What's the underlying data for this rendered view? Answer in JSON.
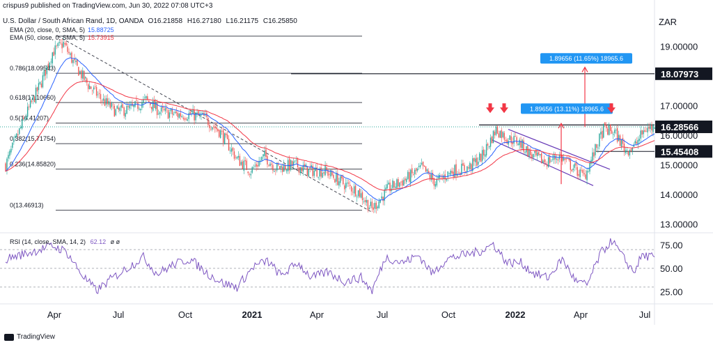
{
  "header": {
    "publisher": "crispus9 published on TradingView.com, Jun 30, 2022 07:08 UTC+3",
    "symbol_line": "U.S. Dollar / South African Rand, 1D, OANDA",
    "ohlc": {
      "o": "O16.21858",
      "h": "H16.27180",
      "l": "L16.21175",
      "c": "C16.25850"
    }
  },
  "indicators": [
    {
      "label": "EMA (20, close, 0, SMA, 5)",
      "value": "15.88725",
      "color": "#2962ff"
    },
    {
      "label": "EMA (50, close, 0, SMA, 5)",
      "value": "15.73915",
      "color": "#f23645"
    }
  ],
  "rsi_label": {
    "text": "RSI (14, close, SMA, 14, 2)",
    "value": "62.12",
    "extra": "ø  ø"
  },
  "currency": "ZAR",
  "footer": "TradingView",
  "colors": {
    "up": "#26a69a",
    "down": "#ef5350",
    "ema20": "#2962ff",
    "ema50": "#f23645",
    "rsi": "#7e57c2",
    "arrow": "#f23645",
    "channel": "#673ab7",
    "badge": "#2196f3"
  },
  "chart_data": [
    {
      "type": "candlestick",
      "pair": "USD/ZAR",
      "timeframe": "1D",
      "y_ticks": [
        "19.00000",
        "17.00000",
        "16.00000",
        "15.00000",
        "14.00000",
        "13.00000"
      ],
      "y_range": [
        12.8,
        20.1
      ],
      "x_labels": [
        "Apr",
        "Jul",
        "Oct",
        "2021",
        "Apr",
        "Jul",
        "Oct",
        "2022",
        "Apr",
        "Jul"
      ],
      "x_label_bold": [
        "2021",
        "2022"
      ],
      "price_tags": [
        {
          "value": 18.07973,
          "label": "18.07973"
        },
        {
          "value": 16.28566,
          "label": "16.28566"
        },
        {
          "value": 15.45408,
          "label": "15.45408"
        }
      ],
      "fib_levels": [
        {
          "ratio": "1",
          "value": 19.35,
          "label": ""
        },
        {
          "ratio": "0.786",
          "value": 18.09543,
          "label": "0.786(18.09543)"
        },
        {
          "ratio": "0.618",
          "value": 17.1066,
          "label": "0.618(17.10660)"
        },
        {
          "ratio": "0.5",
          "value": 16.41207,
          "label": "0.5(16.41207)"
        },
        {
          "ratio": "0.382",
          "value": 15.71754,
          "label": "0.382(15.71754)"
        },
        {
          "ratio": "0.236",
          "value": 14.8582,
          "label": "0.236(14.85820)"
        },
        {
          "ratio": "0",
          "value": 13.46913,
          "label": "0(13.46913)"
        }
      ],
      "measure_badges": [
        {
          "text": "1.89656 (11.65%) 18965.6",
          "value": 18.6
        },
        {
          "text": "1.89656 (13.11%) 18965.6",
          "value": 16.9
        }
      ],
      "anchors": [
        {
          "t": 0,
          "v": 15.0
        },
        {
          "t": 14,
          "v": 16.6
        },
        {
          "t": 26,
          "v": 17.8
        },
        {
          "t": 34,
          "v": 18.8
        },
        {
          "t": 42,
          "v": 19.1
        },
        {
          "t": 50,
          "v": 18.4
        },
        {
          "t": 60,
          "v": 17.7
        },
        {
          "t": 70,
          "v": 17.2
        },
        {
          "t": 80,
          "v": 16.8
        },
        {
          "t": 92,
          "v": 16.9
        },
        {
          "t": 102,
          "v": 17.2
        },
        {
          "t": 112,
          "v": 16.8
        },
        {
          "t": 124,
          "v": 16.7
        },
        {
          "t": 134,
          "v": 16.7
        },
        {
          "t": 144,
          "v": 16.6
        },
        {
          "t": 156,
          "v": 16.1
        },
        {
          "t": 168,
          "v": 15.2
        },
        {
          "t": 178,
          "v": 14.8
        },
        {
          "t": 188,
          "v": 15.3
        },
        {
          "t": 196,
          "v": 14.9
        },
        {
          "t": 210,
          "v": 15.0
        },
        {
          "t": 220,
          "v": 14.8
        },
        {
          "t": 232,
          "v": 14.8
        },
        {
          "t": 244,
          "v": 14.4
        },
        {
          "t": 256,
          "v": 14.1
        },
        {
          "t": 266,
          "v": 13.5
        },
        {
          "t": 278,
          "v": 14.2
        },
        {
          "t": 290,
          "v": 14.5
        },
        {
          "t": 302,
          "v": 14.9
        },
        {
          "t": 312,
          "v": 14.4
        },
        {
          "t": 324,
          "v": 14.8
        },
        {
          "t": 336,
          "v": 14.9
        },
        {
          "t": 346,
          "v": 15.3
        },
        {
          "t": 356,
          "v": 16.2
        },
        {
          "t": 364,
          "v": 15.9
        },
        {
          "t": 372,
          "v": 15.8
        },
        {
          "t": 382,
          "v": 15.3
        },
        {
          "t": 392,
          "v": 15.1
        },
        {
          "t": 402,
          "v": 15.3
        },
        {
          "t": 412,
          "v": 14.9
        },
        {
          "t": 420,
          "v": 14.6
        },
        {
          "t": 428,
          "v": 15.5
        },
        {
          "t": 434,
          "v": 16.2
        },
        {
          "t": 442,
          "v": 16.1
        },
        {
          "t": 450,
          "v": 15.5
        },
        {
          "t": 456,
          "v": 15.6
        },
        {
          "t": 464,
          "v": 16.2
        },
        {
          "t": 470,
          "v": 16.26
        }
      ],
      "rsi": {
        "y_ticks": [
          "75.00",
          "50.00",
          "25.00"
        ],
        "range": [
          15,
          85
        ],
        "levels": [
          70,
          50,
          30
        ],
        "anchors": [
          {
            "t": 0,
            "v": 60
          },
          {
            "t": 20,
            "v": 68
          },
          {
            "t": 34,
            "v": 74
          },
          {
            "t": 44,
            "v": 68
          },
          {
            "t": 56,
            "v": 42
          },
          {
            "t": 66,
            "v": 26
          },
          {
            "t": 76,
            "v": 38
          },
          {
            "t": 88,
            "v": 50
          },
          {
            "t": 100,
            "v": 62
          },
          {
            "t": 110,
            "v": 44
          },
          {
            "t": 122,
            "v": 54
          },
          {
            "t": 134,
            "v": 60
          },
          {
            "t": 146,
            "v": 45
          },
          {
            "t": 158,
            "v": 34
          },
          {
            "t": 168,
            "v": 30
          },
          {
            "t": 180,
            "v": 52
          },
          {
            "t": 190,
            "v": 58
          },
          {
            "t": 200,
            "v": 42
          },
          {
            "t": 212,
            "v": 56
          },
          {
            "t": 222,
            "v": 40
          },
          {
            "t": 234,
            "v": 46
          },
          {
            "t": 246,
            "v": 36
          },
          {
            "t": 258,
            "v": 40
          },
          {
            "t": 266,
            "v": 26
          },
          {
            "t": 276,
            "v": 62
          },
          {
            "t": 288,
            "v": 56
          },
          {
            "t": 300,
            "v": 64
          },
          {
            "t": 310,
            "v": 44
          },
          {
            "t": 320,
            "v": 60
          },
          {
            "t": 332,
            "v": 64
          },
          {
            "t": 344,
            "v": 68
          },
          {
            "t": 354,
            "v": 76
          },
          {
            "t": 364,
            "v": 56
          },
          {
            "t": 374,
            "v": 56
          },
          {
            "t": 384,
            "v": 44
          },
          {
            "t": 394,
            "v": 40
          },
          {
            "t": 404,
            "v": 60
          },
          {
            "t": 414,
            "v": 36
          },
          {
            "t": 422,
            "v": 32
          },
          {
            "t": 432,
            "v": 66
          },
          {
            "t": 440,
            "v": 80
          },
          {
            "t": 448,
            "v": 62
          },
          {
            "t": 456,
            "v": 46
          },
          {
            "t": 462,
            "v": 64
          },
          {
            "t": 470,
            "v": 62
          }
        ]
      }
    }
  ]
}
